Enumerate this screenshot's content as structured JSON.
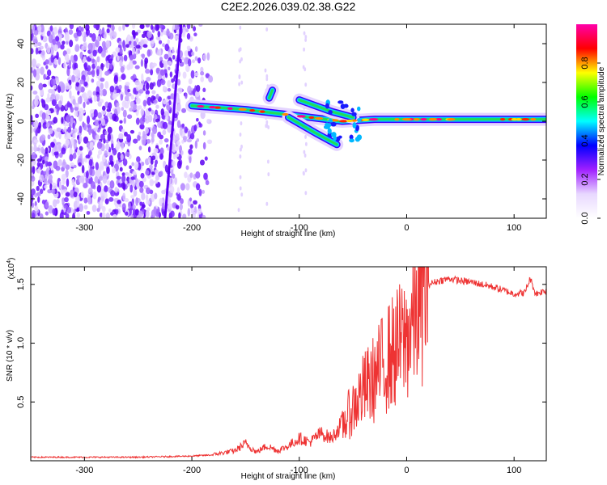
{
  "chart_data": [
    {
      "type": "heatmap",
      "title": "C2E2.2026.039.02.38.G22",
      "xlabel": "Height of straight line (km)",
      "ylabel": "Frequency (Hz)",
      "xlim": [
        -350,
        130
      ],
      "ylim": [
        -50,
        50
      ],
      "xticks": [
        -300,
        -200,
        -100,
        0,
        100
      ],
      "yticks": [
        -40,
        -20,
        0,
        20,
        40
      ],
      "colorbar": {
        "label": "Normalized spectral amplitude",
        "range": [
          0,
          1
        ],
        "ticks": [
          "0.0",
          "0.2",
          "0.4",
          "0.6",
          "0.8"
        ],
        "colors": [
          "#ffffff",
          "#e8d8ff",
          "#a020ff",
          "#0000ff",
          "#00ffff",
          "#00ff00",
          "#ffff00",
          "#ff0000",
          "#ff00aa"
        ]
      },
      "features": {
        "noise_region_x": [
          -350,
          -180
        ],
        "diagonal_streak": [
          [
            -210,
            50
          ],
          [
            -225,
            -50
          ]
        ],
        "main_track": [
          [
            -200,
            8
          ],
          [
            -150,
            6
          ],
          [
            -120,
            4
          ],
          [
            -90,
            2
          ],
          [
            -60,
            0
          ],
          [
            -30,
            1
          ],
          [
            0,
            1
          ],
          [
            50,
            1
          ],
          [
            100,
            1
          ],
          [
            130,
            1
          ]
        ],
        "upper_branch": [
          [
            -100,
            11
          ],
          [
            -70,
            5
          ],
          [
            -50,
            2
          ]
        ],
        "lower_branch": [
          [
            -110,
            2
          ],
          [
            -85,
            -6
          ],
          [
            -65,
            -12
          ]
        ],
        "side_blob": [
          [
            -125,
            16
          ],
          [
            -128,
            12
          ]
        ]
      },
      "grid": false
    },
    {
      "type": "line",
      "title": "",
      "xlabel": "Height of straight line (km)",
      "ylabel": "SNR (10 * v/v)",
      "ylabel_exponent": "(x10",
      "ylabel_exponent_power": "4",
      "ylabel_exponent_close": ")",
      "xlim": [
        -350,
        130
      ],
      "ylim": [
        0,
        1.65
      ],
      "xticks": [
        -300,
        -200,
        -100,
        0,
        100
      ],
      "yticks": [
        "0.5",
        "1.0",
        "1.5"
      ],
      "series": [
        {
          "color": "#ee3333",
          "x": [
            -350,
            -300,
            -250,
            -200,
            -180,
            -160,
            -150,
            -140,
            -130,
            -120,
            -110,
            -100,
            -90,
            -80,
            -70,
            -60,
            -50,
            -40,
            -30,
            -20,
            -10,
            0,
            10,
            20,
            30,
            40,
            50,
            60,
            70,
            80,
            90,
            100,
            110,
            115,
            120,
            130
          ],
          "y": [
            0.03,
            0.03,
            0.03,
            0.04,
            0.05,
            0.08,
            0.14,
            0.07,
            0.12,
            0.08,
            0.12,
            0.18,
            0.15,
            0.22,
            0.18,
            0.3,
            0.45,
            0.6,
            0.7,
            0.85,
            0.95,
            1.05,
            1.3,
            1.5,
            1.53,
            1.55,
            1.53,
            1.52,
            1.5,
            1.48,
            1.45,
            1.42,
            1.43,
            1.55,
            1.42,
            1.45
          ]
        }
      ],
      "grid": false
    }
  ]
}
